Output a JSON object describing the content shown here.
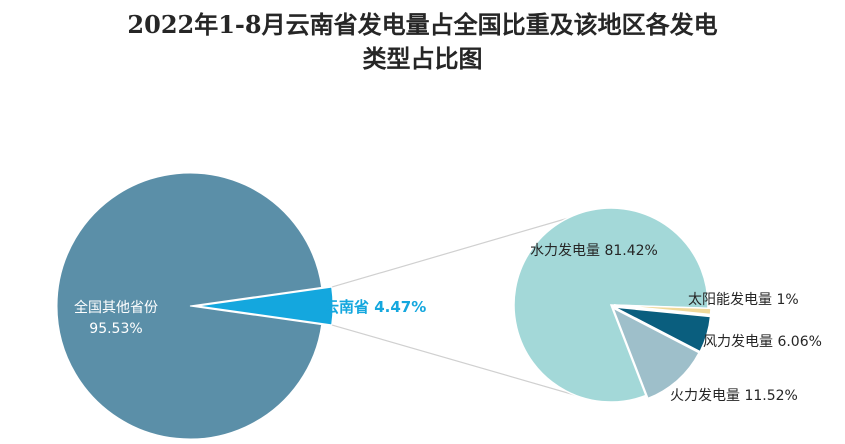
{
  "title_line1": "2022年1-8月云南省发电量占全国比重及该地区各发电",
  "title_line2": "类型占比图",
  "chart_data": [
    {
      "type": "pie",
      "title": "2022年1-8月云南省发电量占全国比重及该地区各发电类型占比图",
      "slices": [
        {
          "label": "全国其他省份",
          "value": 95.53,
          "display": "95.53%",
          "color": "#5b8fa8"
        },
        {
          "label": "云南省",
          "value": 4.47,
          "display": "4.47%",
          "color": "#14a7de"
        }
      ]
    },
    {
      "type": "pie",
      "slices": [
        {
          "label": "水力发电量",
          "value": 81.42,
          "display": "81.42%",
          "color": "#a3d8d8"
        },
        {
          "label": "太阳能发电量",
          "value": 1,
          "display": "1%",
          "color": "#f0d99a"
        },
        {
          "label": "风力发电量",
          "value": 6.06,
          "display": "6.06%",
          "color": "#0a5e7e"
        },
        {
          "label": "火力发电量",
          "value": 11.52,
          "display": "11.52%",
          "color": "#9ebfca"
        }
      ]
    }
  ]
}
